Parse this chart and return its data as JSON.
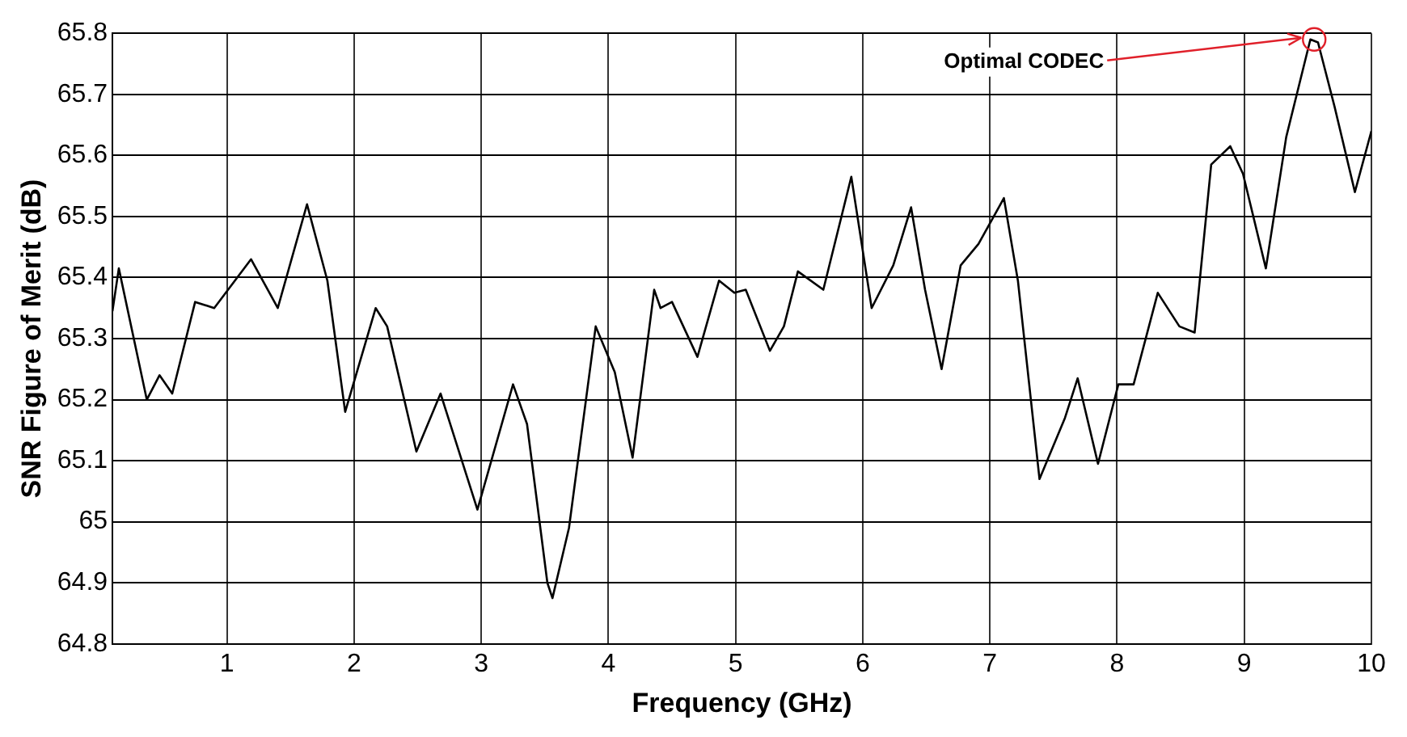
{
  "chart_data": {
    "type": "line",
    "xlabel": "Frequency (GHz)",
    "ylabel": "SNR Figure of Merit (dB)",
    "x": [
      0.1,
      0.15,
      0.37,
      0.47,
      0.57,
      0.75,
      0.9,
      1.19,
      1.4,
      1.63,
      1.79,
      1.93,
      2.17,
      2.26,
      2.49,
      2.68,
      2.97,
      3.25,
      3.36,
      3.52,
      3.56,
      3.69,
      3.9,
      4.05,
      4.19,
      4.36,
      4.41,
      4.5,
      4.7,
      4.87,
      4.99,
      5.08,
      5.27,
      5.38,
      5.49,
      5.69,
      5.91,
      6.07,
      6.24,
      6.38,
      6.49,
      6.62,
      6.77,
      6.91,
      7.11,
      7.22,
      7.39,
      7.59,
      7.69,
      7.85,
      8.01,
      8.13,
      8.32,
      8.49,
      8.61,
      8.74,
      8.89,
      8.99,
      9.17,
      9.33,
      9.52,
      9.58,
      9.71,
      9.87,
      10.0
    ],
    "series": [
      {
        "color": "#000000",
        "values": [
          65.345,
          65.415,
          65.2,
          65.24,
          65.21,
          65.36,
          65.35,
          65.43,
          65.35,
          65.52,
          65.395,
          65.18,
          65.35,
          65.32,
          65.115,
          65.21,
          65.02,
          65.225,
          65.16,
          64.9,
          64.875,
          64.99,
          65.32,
          65.245,
          65.105,
          65.38,
          65.35,
          65.36,
          65.27,
          65.395,
          65.375,
          65.38,
          65.28,
          65.32,
          65.41,
          65.38,
          65.565,
          65.35,
          65.42,
          65.515,
          65.38,
          65.25,
          65.42,
          65.455,
          65.53,
          65.395,
          65.07,
          65.17,
          65.235,
          65.095,
          65.225,
          65.225,
          65.375,
          65.32,
          65.31,
          65.585,
          65.615,
          65.57,
          65.415,
          65.63,
          65.79,
          65.785,
          65.68,
          65.54,
          65.64
        ]
      }
    ],
    "xlim": [
      0.1,
      10
    ],
    "xticks": [
      1,
      2,
      3,
      4,
      5,
      6,
      7,
      8,
      9,
      10
    ],
    "ylim": [
      64.8,
      65.8
    ],
    "yticks": [
      64.8,
      64.9,
      65,
      65.1,
      65.2,
      65.3,
      65.4,
      65.5,
      65.6,
      65.7,
      65.8
    ],
    "grid": true,
    "legend": false,
    "marker": "none",
    "line_style": "solid",
    "annotations": [
      {
        "text": "Optimal CODEC",
        "x": 9.55,
        "y": 65.79
      }
    ]
  }
}
